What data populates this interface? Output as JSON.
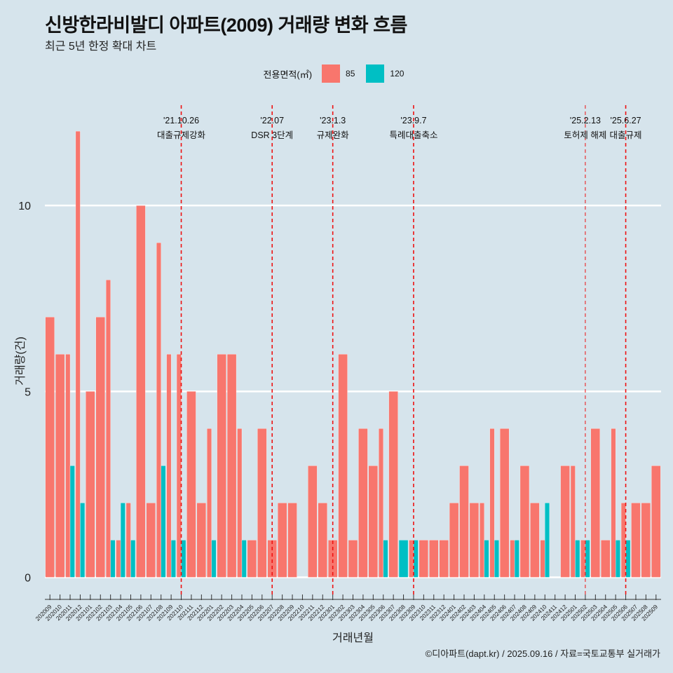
{
  "title": "신방한라비발디 아파트(2009) 거래량 변화 흐름",
  "subtitle": "최근 5년 한정 확대 차트",
  "caption": "©디아파트(dapt.kr) / 2025.09.16 / 자료=국토교통부 실거래가",
  "legend": {
    "title": "전용면적(㎡)",
    "items": [
      {
        "label": "85",
        "color": "#f8766d"
      },
      {
        "label": "120",
        "color": "#00bfc4"
      }
    ]
  },
  "chart_data": {
    "type": "bar",
    "title": "신방한라비발디 아파트(2009) 거래량 변화 흐름",
    "subtitle": "최근 5년 한정 확대 차트",
    "xlabel": "거래년월",
    "ylabel": "거래량(건)",
    "ylim": [
      -0.5,
      12.7
    ],
    "yticks": [
      0,
      5,
      10
    ],
    "grid": true,
    "legend_position": "top",
    "categories": [
      "202009",
      "202010",
      "202011",
      "202012",
      "202101",
      "202102",
      "202103",
      "202104",
      "202105",
      "202106",
      "202107",
      "202108",
      "202109",
      "202110",
      "202111",
      "202112",
      "202201",
      "202202",
      "202203",
      "202204",
      "202205",
      "202206",
      "202207",
      "202208",
      "202209",
      "202210",
      "202211",
      "202212",
      "202301",
      "202302",
      "202303",
      "202304",
      "202305",
      "202306",
      "202307",
      "202308",
      "202309",
      "202310",
      "202311",
      "202312",
      "202401",
      "202402",
      "202403",
      "202404",
      "202405",
      "202406",
      "202407",
      "202408",
      "202409",
      "202410",
      "202411",
      "202412",
      "202501",
      "202502",
      "202503",
      "202504",
      "202505",
      "202506",
      "202507",
      "202508",
      "202509"
    ],
    "series": [
      {
        "name": "85",
        "color": "#f8766d",
        "values": [
          7,
          6,
          6,
          12,
          5,
          7,
          8,
          1,
          2,
          10,
          2,
          9,
          6,
          6,
          5,
          2,
          4,
          6,
          6,
          4,
          1,
          4,
          1,
          2,
          2,
          0,
          3,
          2,
          1,
          6,
          1,
          4,
          3,
          4,
          5,
          0,
          1,
          1,
          1,
          1,
          2,
          3,
          2,
          2,
          4,
          4,
          1,
          3,
          2,
          1,
          0,
          3,
          3,
          1,
          4,
          1,
          4,
          2,
          2,
          2,
          3
        ]
      },
      {
        "name": "120",
        "color": "#00bfc4",
        "values": [
          0,
          0,
          3,
          2,
          0,
          0,
          1,
          2,
          1,
          0,
          0,
          3,
          1,
          1,
          0,
          0,
          1,
          0,
          0,
          1,
          0,
          0,
          0,
          0,
          0,
          0,
          0,
          0,
          0,
          0,
          0,
          0,
          0,
          1,
          0,
          1,
          1,
          0,
          0,
          0,
          0,
          0,
          0,
          1,
          1,
          0,
          1,
          0,
          0,
          2,
          0,
          0,
          1,
          1,
          0,
          0,
          1,
          1,
          0,
          0,
          0
        ]
      }
    ],
    "annotations": [
      {
        "date": "'21.10.26",
        "text": "대출규제강화",
        "at": "202110"
      },
      {
        "date": "'22.07",
        "text": "DSR 3단계",
        "at": "202207"
      },
      {
        "date": "'23.1.3",
        "text": "규제완화",
        "at": "202301"
      },
      {
        "date": "'23.9.7",
        "text": "특례대출축소",
        "at": "202309"
      },
      {
        "date": "'25.2.13",
        "text": "토허제 해제",
        "at": "202502"
      },
      {
        "date": "'25.6.27",
        "text": "대출규제",
        "at": "202506"
      }
    ]
  }
}
